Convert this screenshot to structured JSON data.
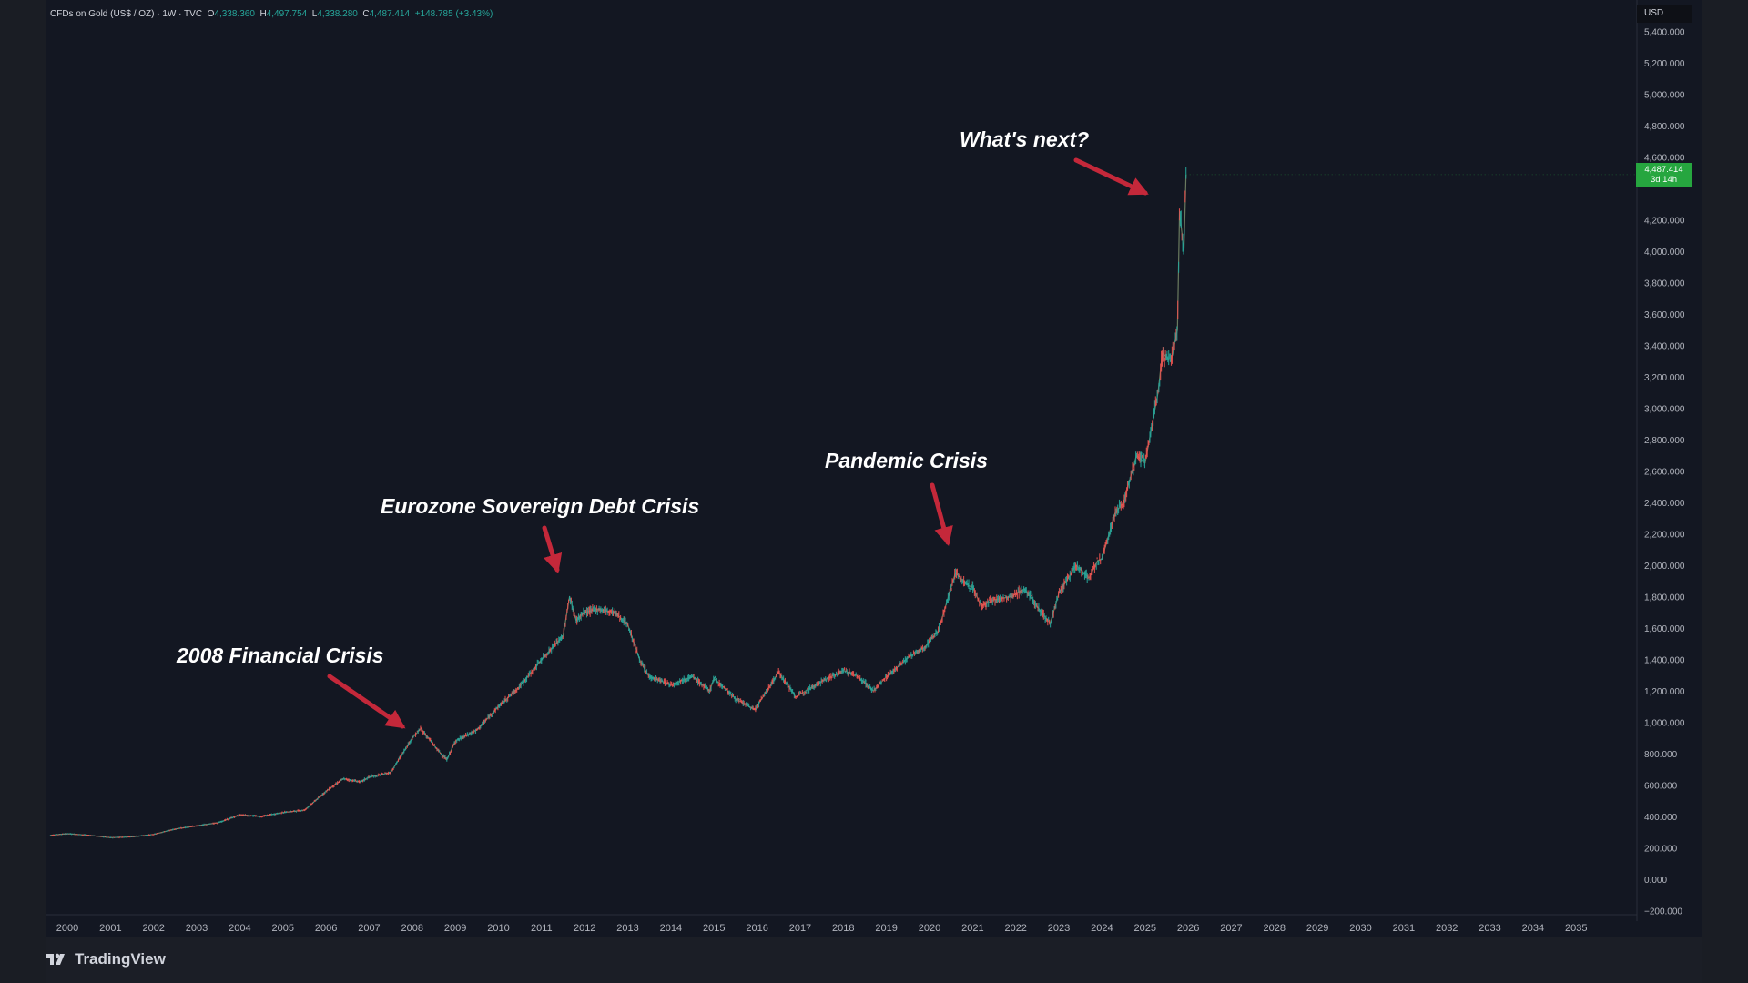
{
  "legend": {
    "symbol": "CFDs on Gold (US$ / OZ) · 1W · TVC",
    "open_label": "O",
    "open": "4,338.360",
    "high_label": "H",
    "high": "4,497.754",
    "low_label": "L",
    "low": "4,338.280",
    "close_label": "C",
    "close": "4,487.414",
    "change": "+148.785 (+3.43%)"
  },
  "price_axis": {
    "currency": "USD",
    "last_price": "4,487.414",
    "countdown": "3d 14h",
    "tick_labels": [
      "5,400.000",
      "5,200.000",
      "5,000.000",
      "4,800.000",
      "4,600.000",
      "4,200.000",
      "4,000.000",
      "3,800.000",
      "3,600.000",
      "3,400.000",
      "3,200.000",
      "3,000.000",
      "2,800.000",
      "2,600.000",
      "2,400.000",
      "2,200.000",
      "2,000.000",
      "1,800.000",
      "1,600.000",
      "1,400.000",
      "1,200.000",
      "1,000.000",
      "800.000",
      "600.000",
      "400.000",
      "200.000",
      "0.000",
      "−200.000"
    ]
  },
  "annotations": {
    "financial_crisis": "2008 Financial Crisis",
    "eurozone_crisis": "Eurozone Sovereign Debt Crisis",
    "pandemic_crisis": "Pandemic Crisis",
    "whats_next": "What's next?"
  },
  "footer": {
    "brand": "TradingView"
  },
  "colors": {
    "up": "#26a69a",
    "down": "#ef5350",
    "arrow": "#c4283a",
    "price_tag": "#26a63f",
    "background": "#131722"
  },
  "chart_data": {
    "type": "line",
    "title": "",
    "xlabel": "",
    "ylabel": "",
    "x_tick_labels": [
      "2000",
      "2001",
      "2002",
      "2003",
      "2004",
      "2005",
      "2006",
      "2007",
      "2008",
      "2009",
      "2010",
      "2011",
      "2012",
      "2013",
      "2014",
      "2015",
      "2016",
      "2017",
      "2018",
      "2019",
      "2020",
      "2021",
      "2022",
      "2023",
      "2024",
      "2025",
      "2026",
      "2027",
      "2028",
      "2029",
      "2030",
      "2031",
      "2032",
      "2033",
      "2034",
      "2035"
    ],
    "xlim": [
      2000,
      2035.5
    ],
    "ylim": [
      -200,
      5450
    ],
    "grid": false,
    "series": [
      {
        "x": [
          1999.6,
          2000.0,
          2000.5,
          2001.0,
          2001.5,
          2002.0,
          2002.5,
          2003.0,
          2003.5,
          2004.0,
          2004.5,
          2005.0,
          2005.5,
          2006.0,
          2006.4,
          2006.8,
          2007.0,
          2007.5,
          2008.0,
          2008.2,
          2008.6,
          2008.8,
          2009.0,
          2009.5,
          2010.0,
          2010.5,
          2011.0,
          2011.5,
          2011.65,
          2011.8,
          2012.0,
          2012.3,
          2012.7,
          2013.0,
          2013.3,
          2013.5,
          2013.8,
          2014.0,
          2014.5,
          2014.9,
          2015.0,
          2015.5,
          2015.95,
          2016.5,
          2016.9,
          2017.0,
          2017.5,
          2018.0,
          2018.3,
          2018.7,
          2019.0,
          2019.5,
          2019.9,
          2020.0,
          2020.2,
          2020.6,
          2020.9,
          2021.0,
          2021.2,
          2021.5,
          2021.9,
          2022.2,
          2022.6,
          2022.8,
          2023.0,
          2023.4,
          2023.7,
          2023.9,
          2024.0,
          2024.3,
          2024.5,
          2024.8,
          2025.0,
          2025.3,
          2025.4,
          2025.6,
          2025.75,
          2025.8,
          2025.9,
          2025.95
        ],
        "y": [
          280,
          290,
          280,
          265,
          270,
          285,
          320,
          340,
          360,
          410,
          400,
          425,
          440,
          560,
          640,
          620,
          650,
          680,
          900,
          960,
          820,
          760,
          880,
          950,
          1100,
          1230,
          1400,
          1550,
          1800,
          1650,
          1700,
          1720,
          1700,
          1620,
          1380,
          1290,
          1260,
          1240,
          1290,
          1200,
          1280,
          1150,
          1080,
          1320,
          1160,
          1180,
          1260,
          1330,
          1300,
          1200,
          1290,
          1410,
          1480,
          1520,
          1580,
          1950,
          1870,
          1860,
          1740,
          1780,
          1800,
          1850,
          1700,
          1630,
          1820,
          2000,
          1920,
          2030,
          2040,
          2330,
          2400,
          2700,
          2650,
          3100,
          3350,
          3300,
          3500,
          4250,
          4000,
          4487
        ]
      }
    ]
  }
}
